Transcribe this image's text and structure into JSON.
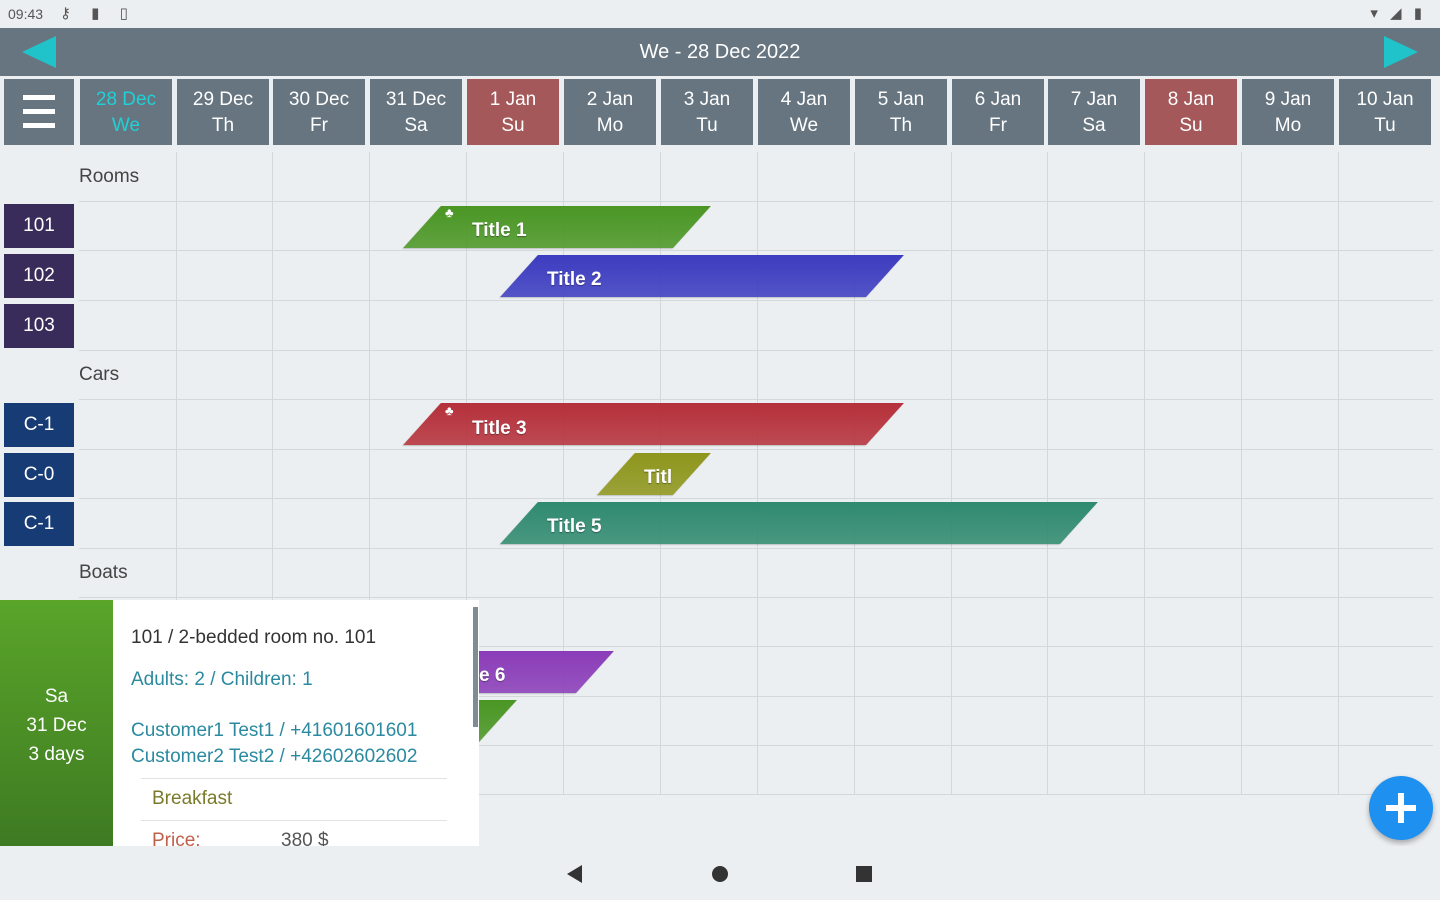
{
  "status_bar": {
    "time": "09:43",
    "left_icons": [
      "key-icon",
      "sd-card-icon",
      "clipboard-icon"
    ],
    "left_icon_glyphs": [
      "⚷",
      "▮",
      "▯"
    ],
    "right_icons": [
      "wifi-icon",
      "signal-icon",
      "battery-icon"
    ],
    "right_icon_glyphs": [
      "▾",
      "◢",
      "▮"
    ]
  },
  "header": {
    "title": "We - 28 Dec 2022",
    "accent": "#1fc3c9"
  },
  "days": [
    {
      "date": "28 Dec",
      "dow": "We",
      "weekend": false,
      "today": true
    },
    {
      "date": "29 Dec",
      "dow": "Th",
      "weekend": false,
      "today": false
    },
    {
      "date": "30 Dec",
      "dow": "Fr",
      "weekend": false,
      "today": false
    },
    {
      "date": "31 Dec",
      "dow": "Sa",
      "weekend": false,
      "today": false
    },
    {
      "date": "1 Jan",
      "dow": "Su",
      "weekend": true,
      "today": false
    },
    {
      "date": "2 Jan",
      "dow": "Mo",
      "weekend": false,
      "today": false
    },
    {
      "date": "3 Jan",
      "dow": "Tu",
      "weekend": false,
      "today": false
    },
    {
      "date": "4 Jan",
      "dow": "We",
      "weekend": false,
      "today": false
    },
    {
      "date": "5 Jan",
      "dow": "Th",
      "weekend": false,
      "today": false
    },
    {
      "date": "6 Jan",
      "dow": "Fr",
      "weekend": false,
      "today": false
    },
    {
      "date": "7 Jan",
      "dow": "Sa",
      "weekend": false,
      "today": false
    },
    {
      "date": "8 Jan",
      "dow": "Su",
      "weekend": true,
      "today": false
    },
    {
      "date": "9 Jan",
      "dow": "Mo",
      "weekend": false,
      "today": false
    },
    {
      "date": "10 Jan",
      "dow": "Tu",
      "weekend": false,
      "today": false
    }
  ],
  "groups": {
    "rooms": {
      "label": "Rooms",
      "items": [
        "101",
        "102",
        "103"
      ]
    },
    "cars": {
      "label": "Cars",
      "items": [
        "C-1",
        "C-0",
        "C-1"
      ]
    },
    "boats": {
      "label": "Boats"
    }
  },
  "bookings": [
    {
      "title": "Title 1",
      "color": "#4a9624",
      "bell": true
    },
    {
      "title": "Title 2",
      "color": "#3c3cc0",
      "bell": false
    },
    {
      "title": "Title 3",
      "color": "#b5303a",
      "bell": true
    },
    {
      "title": "Titl",
      "color": "#8e961c",
      "bell": false
    },
    {
      "title": "Title 5",
      "color": "#2f8a6e",
      "bell": false
    },
    {
      "title": "e 6",
      "color": "#8a3cb8",
      "bell": false
    },
    {
      "title": "",
      "color": "#4a9624",
      "bell": false
    }
  ],
  "popup": {
    "day": "Sa",
    "date": "31 Dec",
    "duration": "3 days",
    "room": "101  /  2-bedded room no. 101",
    "guests": "Adults: 2  /  Children: 1",
    "customer1": "Customer1 Test1 / +41601601601",
    "customer2": "Customer2 Test2 / +42602602602",
    "extra": "Breakfast",
    "price_label": "Price:",
    "price_value": "380  $"
  },
  "fab_icon": "plus-icon"
}
